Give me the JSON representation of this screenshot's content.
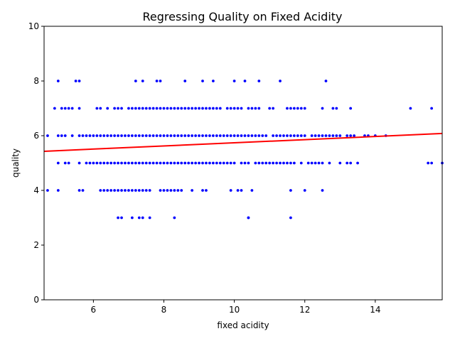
{
  "chart_data": {
    "type": "scatter",
    "title": "Regressing Quality on Fixed Acidity",
    "xlabel": "fixed acidity",
    "ylabel": "quality",
    "xlim": [
      4.6,
      15.9
    ],
    "ylim": [
      0,
      10
    ],
    "xticks": [
      6,
      8,
      10,
      12,
      14
    ],
    "yticks": [
      0,
      2,
      4,
      6,
      8,
      10
    ],
    "grid": false,
    "point_color": "#0000ff",
    "regression_line": {
      "color": "#ff0000",
      "x": [
        4.6,
        15.9
      ],
      "y": [
        5.43,
        6.08
      ]
    },
    "points": {
      "3": [
        6.7,
        6.8,
        7.1,
        7.3,
        7.4,
        7.6,
        8.3,
        10.4,
        10.4,
        11.6
      ],
      "4": [
        4.7,
        5.0,
        5.6,
        5.7,
        6.2,
        6.3,
        6.4,
        6.5,
        6.6,
        6.7,
        6.8,
        6.9,
        7.0,
        7.1,
        7.2,
        7.3,
        7.4,
        7.5,
        7.6,
        7.9,
        8.0,
        8.1,
        8.2,
        8.3,
        8.4,
        8.5,
        8.8,
        9.1,
        9.2,
        9.9,
        10.1,
        10.2,
        10.5,
        11.6,
        12.0,
        12.5
      ],
      "5": [
        5.0,
        5.2,
        5.3,
        5.6,
        5.8,
        5.9,
        6.0,
        6.1,
        6.2,
        6.3,
        6.4,
        6.5,
        6.6,
        6.7,
        6.8,
        6.9,
        7.0,
        7.1,
        7.2,
        7.3,
        7.4,
        7.5,
        7.6,
        7.7,
        7.8,
        7.9,
        8.0,
        8.1,
        8.2,
        8.3,
        8.4,
        8.5,
        8.6,
        8.7,
        8.8,
        8.9,
        9.0,
        9.1,
        9.2,
        9.3,
        9.4,
        9.5,
        9.6,
        9.7,
        9.8,
        9.9,
        10.0,
        10.2,
        10.3,
        10.4,
        10.6,
        10.7,
        10.8,
        10.9,
        11.0,
        11.1,
        11.2,
        11.3,
        11.4,
        11.5,
        11.6,
        11.7,
        11.9,
        12.1,
        12.2,
        12.3,
        12.4,
        12.5,
        12.7,
        13.0,
        13.2,
        13.3,
        13.5,
        15.5,
        15.6,
        15.9
      ],
      "6": [
        4.7,
        5.0,
        5.1,
        5.2,
        5.4,
        5.6,
        5.7,
        5.8,
        5.9,
        6.0,
        6.1,
        6.2,
        6.3,
        6.4,
        6.5,
        6.6,
        6.7,
        6.8,
        6.9,
        7.0,
        7.1,
        7.2,
        7.3,
        7.4,
        7.5,
        7.6,
        7.7,
        7.8,
        7.9,
        8.0,
        8.1,
        8.2,
        8.3,
        8.4,
        8.5,
        8.6,
        8.7,
        8.8,
        8.9,
        9.0,
        9.1,
        9.2,
        9.3,
        9.4,
        9.5,
        9.6,
        9.7,
        9.8,
        9.9,
        10.0,
        10.1,
        10.2,
        10.3,
        10.4,
        10.5,
        10.6,
        10.7,
        10.8,
        10.9,
        11.1,
        11.2,
        11.3,
        11.4,
        11.5,
        11.6,
        11.7,
        11.8,
        11.9,
        12.0,
        12.2,
        12.3,
        12.4,
        12.5,
        12.6,
        12.7,
        12.8,
        12.9,
        13.0,
        13.2,
        13.3,
        13.4,
        13.7,
        13.8,
        14.0,
        14.3
      ],
      "7": [
        4.9,
        5.1,
        5.2,
        5.3,
        5.4,
        5.6,
        6.1,
        6.2,
        6.4,
        6.6,
        6.7,
        6.8,
        7.0,
        7.1,
        7.2,
        7.3,
        7.4,
        7.5,
        7.6,
        7.7,
        7.8,
        7.9,
        8.0,
        8.1,
        8.2,
        8.3,
        8.4,
        8.5,
        8.6,
        8.7,
        8.8,
        8.9,
        9.0,
        9.1,
        9.2,
        9.3,
        9.4,
        9.5,
        9.6,
        9.8,
        9.9,
        10.0,
        10.1,
        10.2,
        10.4,
        10.5,
        10.6,
        10.7,
        11.0,
        11.1,
        11.5,
        11.6,
        11.7,
        11.8,
        11.9,
        12.0,
        12.5,
        12.8,
        12.9,
        13.3,
        15.0,
        15.6
      ],
      "8": [
        5.0,
        5.5,
        5.6,
        7.2,
        7.4,
        7.8,
        7.9,
        8.6,
        9.1,
        9.4,
        10.0,
        10.3,
        10.7,
        11.3,
        12.6
      ]
    }
  }
}
